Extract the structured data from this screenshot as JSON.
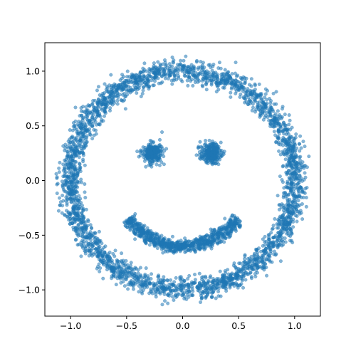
{
  "chart_data": {
    "type": "scatter",
    "title": "",
    "xlabel": "",
    "ylabel": "",
    "xlim": [
      -1.23,
      1.23
    ],
    "ylim": [
      -1.24,
      1.26
    ],
    "grid": false,
    "legend": "none",
    "x_ticks": [
      {
        "value": -1.0,
        "label": "−1.0"
      },
      {
        "value": -0.5,
        "label": "−0.5"
      },
      {
        "value": 0.0,
        "label": "0.0"
      },
      {
        "value": 0.5,
        "label": "0.5"
      },
      {
        "value": 1.0,
        "label": "1.0"
      }
    ],
    "y_ticks": [
      {
        "value": 1.0,
        "label": "1.0"
      },
      {
        "value": 0.5,
        "label": "0.5"
      },
      {
        "value": 0.0,
        "label": "0.0"
      },
      {
        "value": -0.5,
        "label": "−0.5"
      },
      {
        "value": -1.0,
        "label": "−1.0"
      }
    ],
    "series": [
      {
        "color": "#1f77b4",
        "opacity": 0.55,
        "groups": [
          {
            "shape": "ring",
            "center": [
              0.0,
              0.0
            ],
            "radius": 1.0,
            "noise": 0.05,
            "count": 3000
          },
          {
            "shape": "cluster",
            "center": [
              -0.27,
              0.25
            ],
            "spread": [
              0.045,
              0.045
            ],
            "count": 250
          },
          {
            "shape": "cluster",
            "center": [
              0.25,
              0.25
            ],
            "spread": [
              0.045,
              0.045
            ],
            "count": 250
          },
          {
            "shape": "arc",
            "center": [
              0.0,
              0.0
            ],
            "radius": 0.6,
            "angle_range_deg": [
              215,
              325
            ],
            "noise": 0.03,
            "count": 800
          }
        ]
      }
    ]
  }
}
